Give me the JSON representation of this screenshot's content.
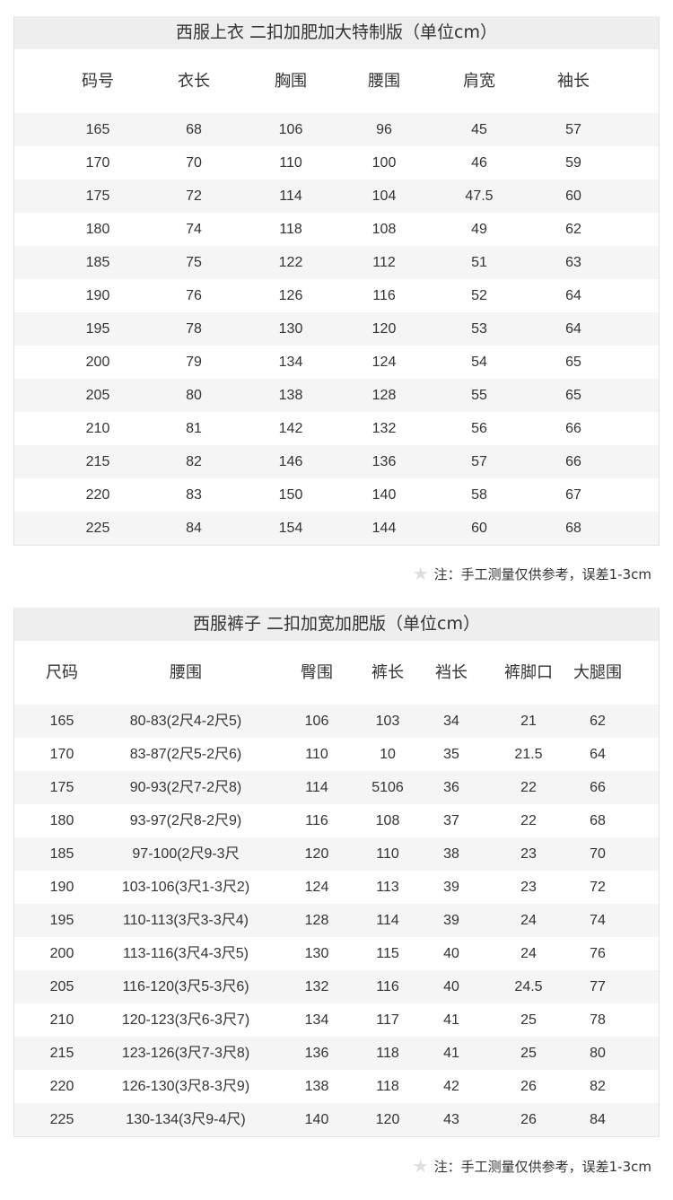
{
  "jacket": {
    "title": "西服上衣 二扣加肥加大特制版（单位cm）",
    "headers": [
      "码号",
      "衣长",
      "胸围",
      "腰围",
      "肩宽",
      "袖长"
    ],
    "rows": [
      [
        "165",
        "68",
        "106",
        "96",
        "45",
        "57"
      ],
      [
        "170",
        "70",
        "110",
        "100",
        "46",
        "59"
      ],
      [
        "175",
        "72",
        "114",
        "104",
        "47.5",
        "60"
      ],
      [
        "180",
        "74",
        "118",
        "108",
        "49",
        "62"
      ],
      [
        "185",
        "75",
        "122",
        "112",
        "51",
        "63"
      ],
      [
        "190",
        "76",
        "126",
        "116",
        "52",
        "64"
      ],
      [
        "195",
        "78",
        "130",
        "120",
        "53",
        "64"
      ],
      [
        "200",
        "79",
        "134",
        "124",
        "54",
        "65"
      ],
      [
        "205",
        "80",
        "138",
        "128",
        "55",
        "65"
      ],
      [
        "210",
        "81",
        "142",
        "132",
        "56",
        "66"
      ],
      [
        "215",
        "82",
        "146",
        "136",
        "57",
        "66"
      ],
      [
        "220",
        "83",
        "150",
        "140",
        "58",
        "67"
      ],
      [
        "225",
        "84",
        "154",
        "144",
        "60",
        "68"
      ]
    ],
    "note": "注：手工测量仅供参考，误差1-3cm"
  },
  "pants": {
    "title": "西服裤子 二扣加宽加肥版（单位cm）",
    "headers": [
      "尺码",
      "腰围",
      "臀围",
      "裤长",
      "裆长",
      "裤脚口",
      "大腿围"
    ],
    "rows": [
      [
        "165",
        "80-83(2尺4-2尺5)",
        "106",
        "103",
        "34",
        "21",
        "62"
      ],
      [
        "170",
        "83-87(2尺5-2尺6)",
        "110",
        "10",
        "35",
        "21.5",
        "64"
      ],
      [
        "175",
        "90-93(2尺7-2尺8)",
        "114",
        "5106",
        "36",
        "22",
        "66"
      ],
      [
        "180",
        "93-97(2尺8-2尺9)",
        "116",
        "108",
        "37",
        "22",
        "68"
      ],
      [
        "185",
        "97-100(2尺9-3尺",
        "120",
        "110",
        "38",
        "23",
        "70"
      ],
      [
        "190",
        "103-106(3尺1-3尺2)",
        "124",
        "113",
        "39",
        "23",
        "72"
      ],
      [
        "195",
        "110-113(3尺3-3尺4)",
        "128",
        "114",
        "39",
        "24",
        "74"
      ],
      [
        "200",
        "113-116(3尺4-3尺5)",
        "130",
        "115",
        "40",
        "24",
        "76"
      ],
      [
        "205",
        "116-120(3尺5-3尺6)",
        "132",
        "116",
        "40",
        "24.5",
        "77"
      ],
      [
        "210",
        "120-123(3尺6-3尺7)",
        "134",
        "117",
        "41",
        "25",
        "78"
      ],
      [
        "215",
        "123-126(3尺7-3尺8)",
        "136",
        "118",
        "41",
        "25",
        "80"
      ],
      [
        "220",
        "126-130(3尺8-3尺9)",
        "138",
        "118",
        "42",
        "26",
        "82"
      ],
      [
        "225",
        "130-134(3尺9-4尺)",
        "140",
        "120",
        "43",
        "26",
        "84"
      ]
    ],
    "note": "注：手工测量仅供参考，误差1-3cm"
  },
  "icons": {
    "note": "star-icon"
  },
  "colors": {
    "title_bg": "#eeeeee",
    "stripe": "#f5f5f5",
    "star": "#dddddd"
  }
}
